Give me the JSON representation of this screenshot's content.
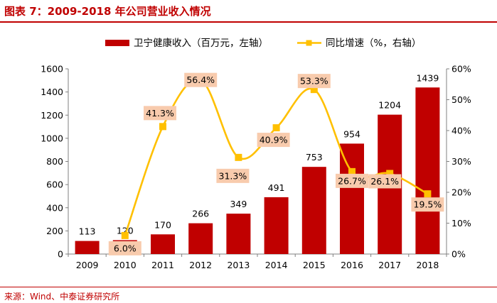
{
  "header": {
    "title": "图表 7：2009-2018 年公司营业收入情况"
  },
  "footer": {
    "source": "来源：Wind、中泰证券研究所"
  },
  "colors": {
    "bar": "#c00000",
    "line": "#ffc000",
    "label_box": "#f8cbad",
    "accent": "#c00000"
  },
  "chart_data": {
    "type": "bar",
    "categories": [
      "2009",
      "2010",
      "2011",
      "2012",
      "2013",
      "2014",
      "2015",
      "2016",
      "2017",
      "2018"
    ],
    "series": [
      {
        "name": "卫宁健康收入（百万元，左轴）",
        "type": "bar",
        "axis": "left",
        "values": [
          113,
          120,
          170,
          266,
          349,
          491,
          753,
          954,
          1204,
          1439
        ],
        "labels": [
          "113",
          "120",
          "170",
          "266",
          "349",
          "491",
          "753",
          "954",
          "1204",
          "1439"
        ]
      },
      {
        "name": "同比增速（%，右轴）",
        "type": "line",
        "axis": "right",
        "values": [
          null,
          6.0,
          41.3,
          56.4,
          31.3,
          40.9,
          53.3,
          26.7,
          26.1,
          19.5
        ],
        "labels": [
          "",
          "6.0%",
          "41.3%",
          "56.4%",
          "31.3%",
          "40.9%",
          "53.3%",
          "26.7%",
          "26.1%",
          "19.5%"
        ]
      }
    ],
    "left_axis": {
      "range": [
        0,
        1600
      ],
      "ticks": [
        "0",
        "200",
        "400",
        "600",
        "800",
        "1000",
        "1200",
        "1400",
        "1600"
      ]
    },
    "right_axis": {
      "range": [
        0,
        60
      ],
      "ticks": [
        "0%",
        "10%",
        "20%",
        "30%",
        "40%",
        "50%",
        "60%"
      ]
    },
    "legend_placement": "top",
    "grid": false
  }
}
